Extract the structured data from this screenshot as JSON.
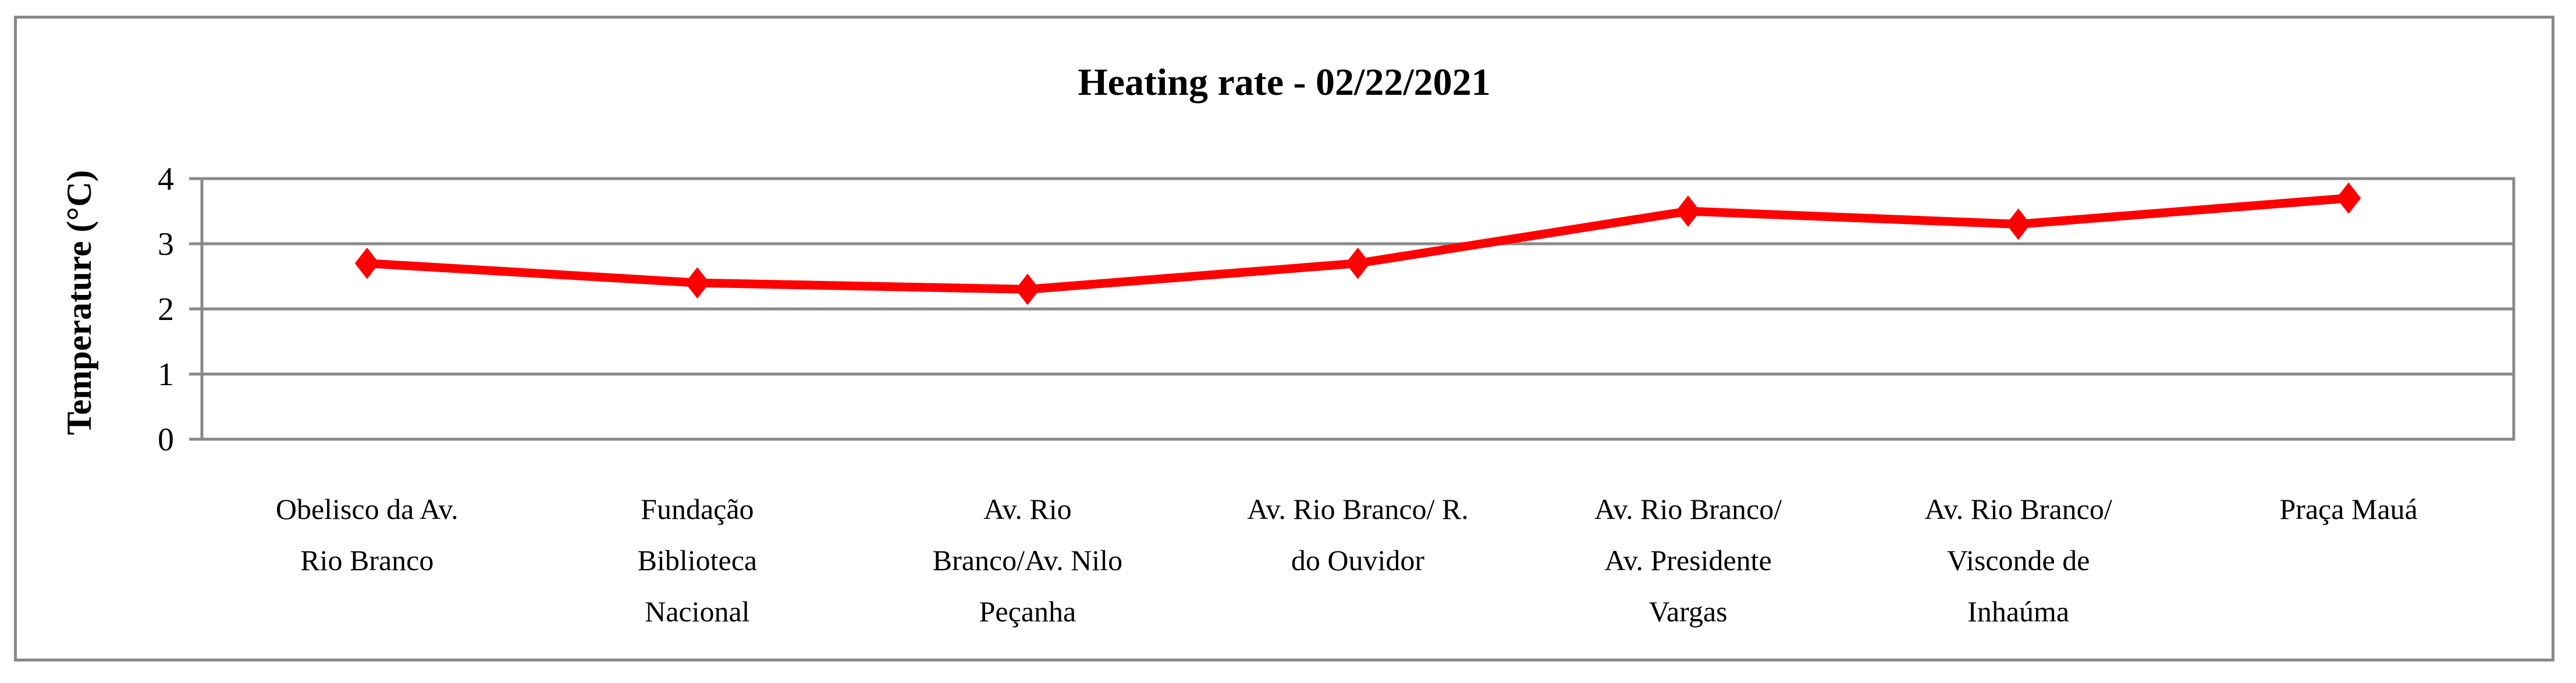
{
  "figure": {
    "title": "Heating rate - 02/22/2021",
    "y_axis_title": "Temperature (°C)"
  },
  "chart_data": {
    "type": "line",
    "title": "Heating rate - 02/22/2021",
    "xlabel": "",
    "ylabel": "Temperature (°C)",
    "categories": [
      "Obelisco da Av.\nRio Branco",
      "Fundação\nBiblioteca\nNacional",
      "Av. Rio\nBranco/Av. Nilo\nPeçanha",
      "Av. Rio Branco/ R.\ndo Ouvidor",
      "Av. Rio Branco/\nAv. Presidente\nVargas",
      "Av. Rio Branco/\nVisconde de\nInhaúma",
      "Praça Mauá"
    ],
    "values": [
      2.7,
      2.4,
      2.3,
      2.7,
      3.5,
      3.3,
      3.7
    ],
    "ylim": [
      0,
      4
    ],
    "yticks": [
      0,
      1,
      2,
      3,
      4
    ],
    "grid": "horizontal",
    "legend": "none",
    "marker": "diamond",
    "colors": {
      "line": "#ff0000",
      "grid": "#898989",
      "border": "#898989",
      "text": "#000000"
    }
  }
}
